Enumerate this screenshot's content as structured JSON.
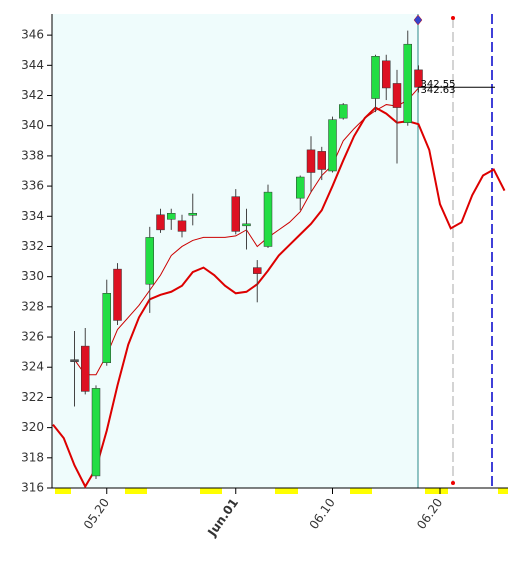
{
  "chart_data": {
    "type": "candlestick",
    "categories": [
      null,
      null,
      null,
      null,
      null,
      "05.20",
      null,
      null,
      null,
      null,
      null,
      null,
      null,
      null,
      null,
      null,
      null,
      "Jun.01",
      null,
      null,
      null,
      null,
      null,
      null,
      null,
      null,
      "06.10",
      null,
      null,
      null,
      null,
      null,
      null,
      null,
      null,
      null,
      "06.20",
      null,
      null,
      null,
      null,
      null,
      null
    ],
    "open": [
      null,
      null,
      324.5,
      325.4,
      316.8,
      324.3,
      330.5,
      null,
      null,
      329.5,
      334.1,
      333.8,
      333.7,
      334.1,
      null,
      null,
      null,
      335.3,
      333.4,
      330.6,
      332.0,
      null,
      null,
      335.2,
      338.4,
      338.3,
      337.0,
      340.5,
      null,
      null,
      341.8,
      344.3,
      342.8,
      340.2,
      343.7,
      null,
      null,
      null,
      null,
      null,
      null,
      null,
      null
    ],
    "high": [
      null,
      null,
      326.4,
      326.6,
      322.8,
      329.8,
      330.9,
      null,
      null,
      333.3,
      334.5,
      334.5,
      334.1,
      335.5,
      null,
      null,
      null,
      335.8,
      334.5,
      331.1,
      336.1,
      null,
      null,
      336.7,
      339.3,
      338.6,
      340.6,
      341.5,
      null,
      null,
      344.7,
      344.7,
      343.7,
      346.3,
      344.0,
      null,
      null,
      null,
      null,
      null,
      null,
      null,
      null
    ],
    "low": [
      null,
      null,
      321.4,
      322.2,
      316.6,
      324.1,
      326.8,
      null,
      null,
      327.6,
      332.9,
      333.1,
      332.6,
      333.4,
      null,
      null,
      null,
      332.8,
      331.8,
      328.3,
      331.9,
      null,
      null,
      334.4,
      335.6,
      336.4,
      336.9,
      340.4,
      null,
      null,
      340.9,
      341.7,
      337.5,
      340.0,
      342.2,
      null,
      null,
      null,
      null,
      null,
      null,
      null,
      null
    ],
    "close": [
      null,
      null,
      324.5,
      322.4,
      322.6,
      328.9,
      327.1,
      null,
      null,
      332.6,
      333.1,
      334.2,
      333.0,
      334.2,
      null,
      null,
      null,
      333.0,
      333.5,
      330.2,
      335.6,
      null,
      null,
      336.6,
      336.9,
      337.1,
      340.4,
      341.4,
      null,
      null,
      344.6,
      342.5,
      341.2,
      345.4,
      342.55,
      null,
      null,
      null,
      null,
      null,
      null,
      null,
      null
    ],
    "up_color": "#22dd44",
    "down_color": "#dd1122",
    "flat_color": "#555555",
    "lines": [
      {
        "color": "#dd0000",
        "width": 2,
        "values": [
          320.2,
          319.3,
          317.5,
          316.1,
          317.3,
          319.8,
          322.8,
          325.5,
          327.3,
          328.5,
          328.8,
          329.0,
          329.4,
          330.3,
          330.6,
          330.1,
          329.4,
          328.9,
          329.0,
          329.5,
          330.4,
          331.4,
          332.1,
          332.8,
          333.5,
          334.4,
          336.0,
          337.7,
          339.3,
          340.5,
          341.2,
          340.8,
          340.2,
          340.3,
          340.1,
          338.4,
          334.8,
          333.2,
          333.6,
          335.4,
          336.7,
          337.1,
          335.7
        ]
      },
      {
        "color": "#cc0000",
        "width": 1,
        "values": [
          null,
          null,
          324.5,
          323.5,
          323.5,
          324.8,
          326.5,
          327.3,
          328.1,
          329.1,
          330.1,
          331.4,
          332.0,
          332.4,
          332.6,
          332.6,
          332.6,
          332.7,
          333.1,
          332.0,
          332.6,
          333.1,
          333.6,
          334.3,
          335.6,
          336.7,
          337.4,
          339.0,
          339.8,
          340.5,
          341.0,
          341.4,
          341.3,
          341.7,
          342.5,
          null,
          null,
          null,
          null,
          null,
          null,
          null,
          null
        ]
      }
    ],
    "annotations": [
      {
        "text": "342.55",
        "value": 342.55
      },
      {
        "text": "342.63",
        "value": 342.63
      }
    ],
    "ylim": [
      316,
      347.4
    ],
    "yticks": [
      316,
      318,
      320,
      322,
      324,
      326,
      328,
      330,
      332,
      334,
      336,
      338,
      340,
      342,
      344,
      346
    ]
  }
}
